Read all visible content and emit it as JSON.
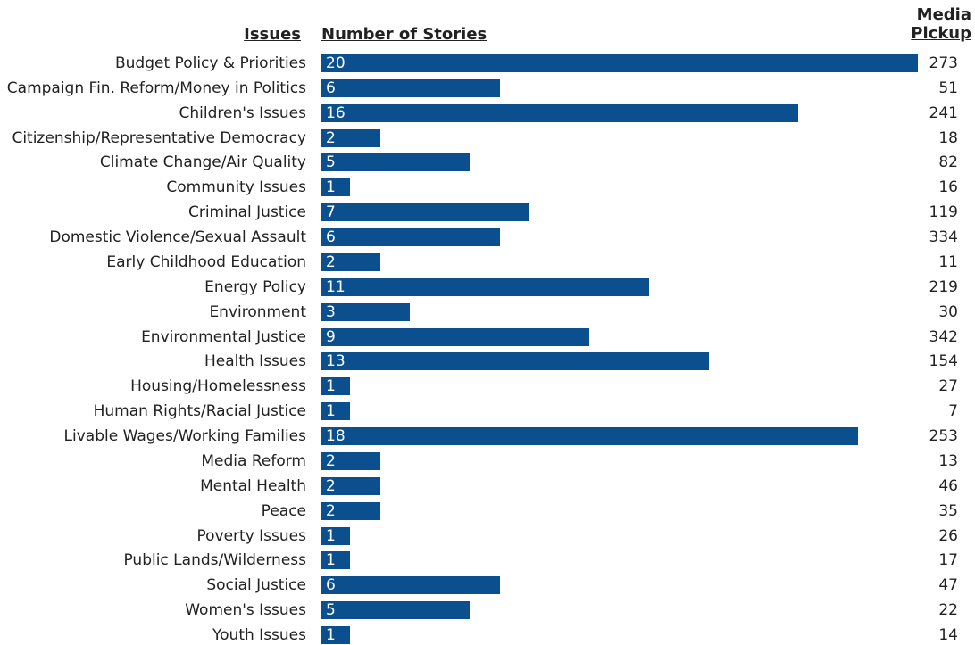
{
  "chart_data": {
    "type": "bar",
    "category_header": "Issues",
    "categories": [
      "Budget Policy & Priorities",
      "Campaign Fin. Reform/Money in Politics",
      "Children's Issues",
      "Citizenship/Representative Democracy",
      "Climate Change/Air Quality",
      "Community Issues",
      "Criminal Justice",
      "Domestic Violence/Sexual Assault",
      "Early Childhood Education",
      "Energy Policy",
      "Environment",
      "Environmental Justice",
      "Health Issues",
      "Housing/Homelessness",
      "Human Rights/Racial Justice",
      "Livable Wages/Working Families",
      "Media Reform",
      "Mental Health",
      "Peace",
      "Poverty Issues",
      "Public Lands/Wilderness",
      "Social Justice",
      "Women's Issues",
      "Youth Issues"
    ],
    "series": [
      {
        "name": "Number of Stories",
        "color": "#0b4f8f",
        "values": [
          20,
          6,
          16,
          2,
          5,
          1,
          7,
          6,
          2,
          11,
          3,
          9,
          13,
          1,
          1,
          18,
          2,
          2,
          2,
          1,
          1,
          6,
          5,
          1
        ]
      }
    ],
    "pickup": {
      "name": "Media Pickup",
      "values": [
        273,
        51,
        241,
        18,
        82,
        16,
        119,
        334,
        11,
        219,
        30,
        342,
        154,
        27,
        7,
        253,
        13,
        46,
        35,
        26,
        17,
        47,
        22,
        14
      ]
    }
  }
}
